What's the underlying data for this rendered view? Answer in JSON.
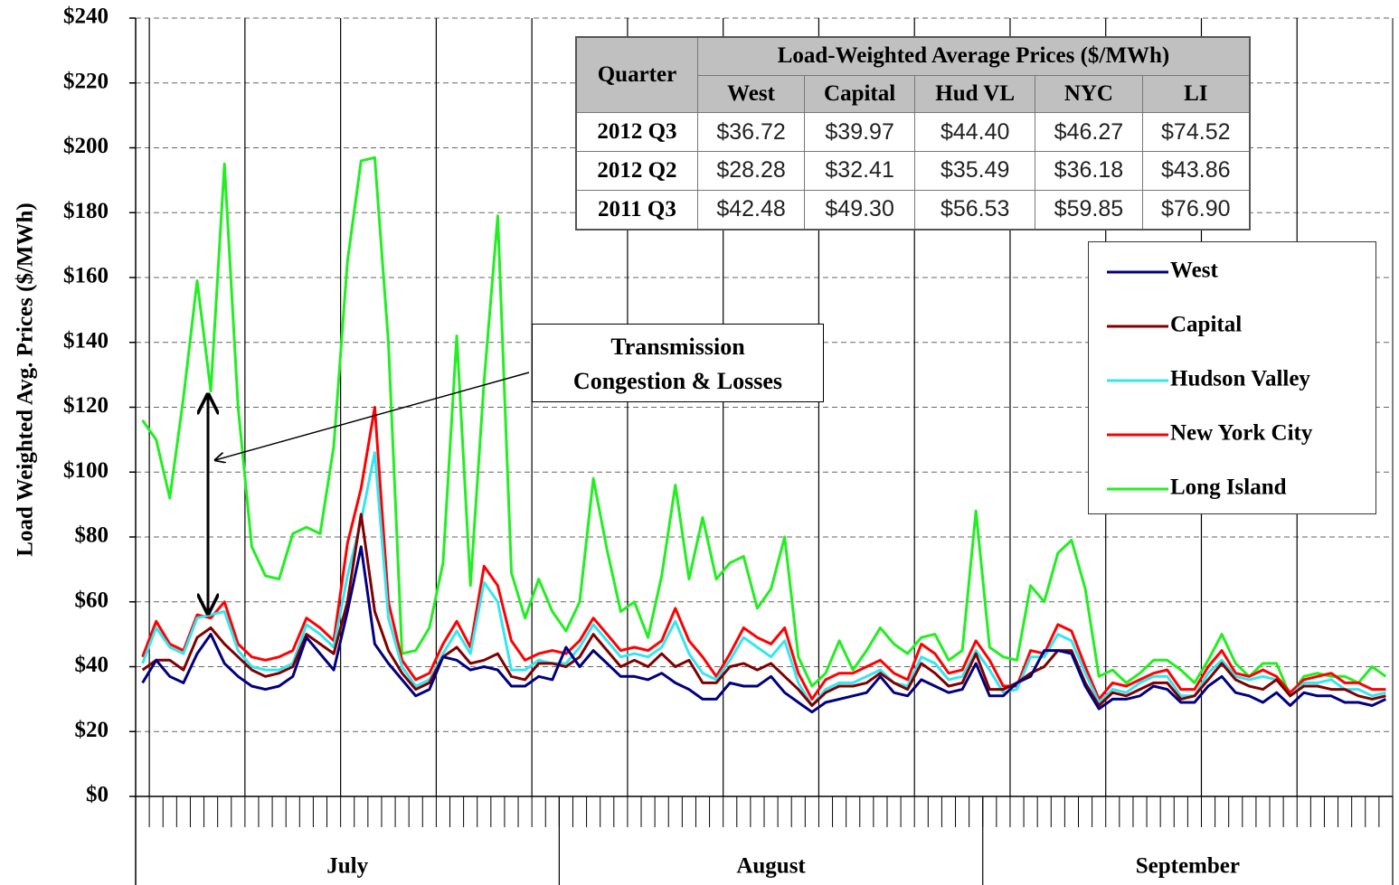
{
  "chart_data": {
    "type": "line",
    "ylabel": "Load Weighted Avg. Prices  ($/MWh)",
    "ylim": [
      0,
      240
    ],
    "yticks": [
      {
        "value": 0,
        "label": "$0"
      },
      {
        "value": 20,
        "label": "$20"
      },
      {
        "value": 40,
        "label": "$40"
      },
      {
        "value": 60,
        "label": "$60"
      },
      {
        "value": 80,
        "label": "$80"
      },
      {
        "value": 100,
        "label": "$100"
      },
      {
        "value": 120,
        "label": "$120"
      },
      {
        "value": 140,
        "label": "$140"
      },
      {
        "value": 160,
        "label": "$160"
      },
      {
        "value": 180,
        "label": "$180"
      },
      {
        "value": 200,
        "label": "$200"
      },
      {
        "value": 220,
        "label": "$220"
      },
      {
        "value": 240,
        "label": "$240"
      }
    ],
    "grid": true,
    "legend": "right",
    "x_groups": [
      {
        "label": "July",
        "days": 31
      },
      {
        "label": "August",
        "days": 31
      },
      {
        "label": "September",
        "days": 30
      }
    ],
    "categories": [
      null,
      null,
      null,
      null,
      null,
      null,
      null,
      null,
      null,
      null,
      null,
      null,
      null,
      null,
      null,
      null,
      null,
      null,
      null,
      null,
      null,
      null,
      null,
      null,
      null,
      null,
      null,
      null,
      null,
      null,
      null,
      null,
      null,
      null,
      null,
      null,
      null,
      null,
      null,
      null,
      null,
      null,
      null,
      null,
      null,
      null,
      null,
      null,
      null,
      null,
      null,
      null,
      null,
      null,
      null,
      null,
      null,
      null,
      null,
      null,
      null,
      null,
      null,
      null,
      null,
      null,
      null,
      null,
      null,
      null,
      null,
      null,
      null,
      null,
      null,
      null,
      null,
      null,
      null,
      null,
      null,
      null,
      null,
      null,
      null,
      null,
      null,
      null,
      null,
      null,
      null,
      null
    ],
    "series": [
      {
        "name": "West",
        "color": "#000080",
        "values": [
          35,
          42,
          37,
          35,
          44,
          50,
          41,
          37,
          34,
          33,
          34,
          37,
          49,
          44,
          39,
          57,
          77,
          47,
          41,
          36,
          31,
          33,
          43,
          42,
          39,
          40,
          39,
          34,
          34,
          37,
          36,
          46,
          40,
          45,
          41,
          37,
          37,
          36,
          38,
          35,
          33,
          30,
          30,
          35,
          34,
          34,
          37,
          32,
          29,
          26,
          29,
          30,
          31,
          32,
          37,
          32,
          31,
          36,
          34,
          32,
          33,
          41,
          31,
          31,
          35,
          37,
          45,
          45,
          44,
          34,
          27,
          30,
          30,
          31,
          34,
          33,
          29,
          29,
          34,
          37,
          32,
          31,
          29,
          32,
          28,
          32,
          31,
          31,
          29,
          29,
          28,
          30
        ]
      },
      {
        "name": "Capital",
        "color": "#800000",
        "values": [
          39,
          42,
          42,
          39,
          49,
          52,
          47,
          43,
          39,
          37,
          38,
          40,
          50,
          47,
          44,
          60,
          87,
          57,
          45,
          38,
          33,
          35,
          43,
          46,
          41,
          42,
          44,
          37,
          36,
          41,
          41,
          40,
          43,
          50,
          45,
          40,
          42,
          40,
          44,
          40,
          42,
          35,
          35,
          40,
          41,
          39,
          41,
          37,
          33,
          28,
          32,
          34,
          34,
          35,
          38,
          35,
          33,
          41,
          38,
          34,
          35,
          44,
          33,
          33,
          35,
          38,
          40,
          45,
          45,
          35,
          28,
          32,
          31,
          33,
          35,
          35,
          30,
          31,
          36,
          41,
          36,
          34,
          33,
          36,
          31,
          34,
          34,
          33,
          33,
          31,
          30,
          31
        ]
      },
      {
        "name": "Hudson Valley",
        "color": "#33e6f0",
        "values": [
          41,
          52,
          46,
          44,
          55,
          56,
          57,
          45,
          40,
          39,
          39,
          41,
          53,
          50,
          46,
          68,
          85,
          106,
          55,
          40,
          34,
          36,
          44,
          51,
          44,
          66,
          60,
          39,
          39,
          42,
          41,
          41,
          46,
          53,
          48,
          43,
          44,
          43,
          46,
          54,
          44,
          38,
          36,
          42,
          49,
          46,
          43,
          48,
          35,
          28,
          33,
          35,
          35,
          37,
          39,
          35,
          34,
          43,
          41,
          36,
          37,
          45,
          39,
          32,
          33,
          43,
          43,
          50,
          48,
          38,
          29,
          33,
          32,
          35,
          37,
          37,
          31,
          31,
          38,
          42,
          37,
          36,
          37,
          36,
          31,
          35,
          35,
          36,
          33,
          33,
          31,
          32
        ]
      },
      {
        "name": "New York City",
        "color": "#ff0000",
        "values": [
          43,
          54,
          47,
          45,
          56,
          55,
          60,
          47,
          43,
          42,
          43,
          45,
          55,
          52,
          48,
          78,
          95,
          120,
          60,
          42,
          36,
          38,
          47,
          54,
          46,
          71,
          65,
          48,
          42,
          44,
          45,
          44,
          48,
          55,
          50,
          45,
          46,
          45,
          48,
          58,
          48,
          43,
          37,
          44,
          52,
          49,
          47,
          52,
          38,
          30,
          36,
          38,
          38,
          40,
          42,
          38,
          36,
          47,
          44,
          38,
          39,
          48,
          42,
          34,
          34,
          45,
          44,
          53,
          51,
          40,
          30,
          35,
          34,
          36,
          38,
          39,
          33,
          33,
          40,
          45,
          38,
          37,
          39,
          37,
          32,
          36,
          37,
          38,
          35,
          35,
          33,
          33
        ]
      },
      {
        "name": "Long Island",
        "color": "#22ee22",
        "values": [
          116,
          110,
          92,
          123,
          159,
          125,
          195,
          120,
          77,
          68,
          67,
          81,
          83,
          81,
          108,
          165,
          196,
          197,
          140,
          44,
          45,
          52,
          72,
          142,
          65,
          128,
          179,
          69,
          55,
          67,
          57,
          51,
          60,
          98,
          76,
          57,
          60,
          49,
          68,
          96,
          67,
          86,
          67,
          72,
          74,
          58,
          64,
          80,
          43,
          34,
          38,
          48,
          39,
          45,
          52,
          47,
          44,
          49,
          50,
          42,
          45,
          88,
          46,
          43,
          42,
          65,
          60,
          75,
          79,
          64,
          37,
          39,
          35,
          38,
          42,
          42,
          39,
          35,
          42,
          50,
          41,
          37,
          41,
          41,
          31,
          37,
          38,
          37,
          37,
          35,
          40,
          37
        ]
      }
    ],
    "annotation": [
      "Transmission",
      "Congestion & Losses"
    ],
    "table": {
      "row_header": "Quarter",
      "header": "Load-Weighted Average Prices ($/MWh)",
      "columns": [
        "West",
        "Capital",
        "Hud VL",
        "NYC",
        "LI"
      ],
      "rows": [
        [
          "2012 Q3",
          "$36.72",
          "$39.97",
          "$44.40",
          "$46.27",
          "$74.52"
        ],
        [
          "2012 Q2",
          "$28.28",
          "$32.41",
          "$35.49",
          "$36.18",
          "$43.86"
        ],
        [
          "2011 Q3",
          "$42.48",
          "$49.30",
          "$56.53",
          "$59.85",
          "$76.90"
        ]
      ]
    }
  }
}
